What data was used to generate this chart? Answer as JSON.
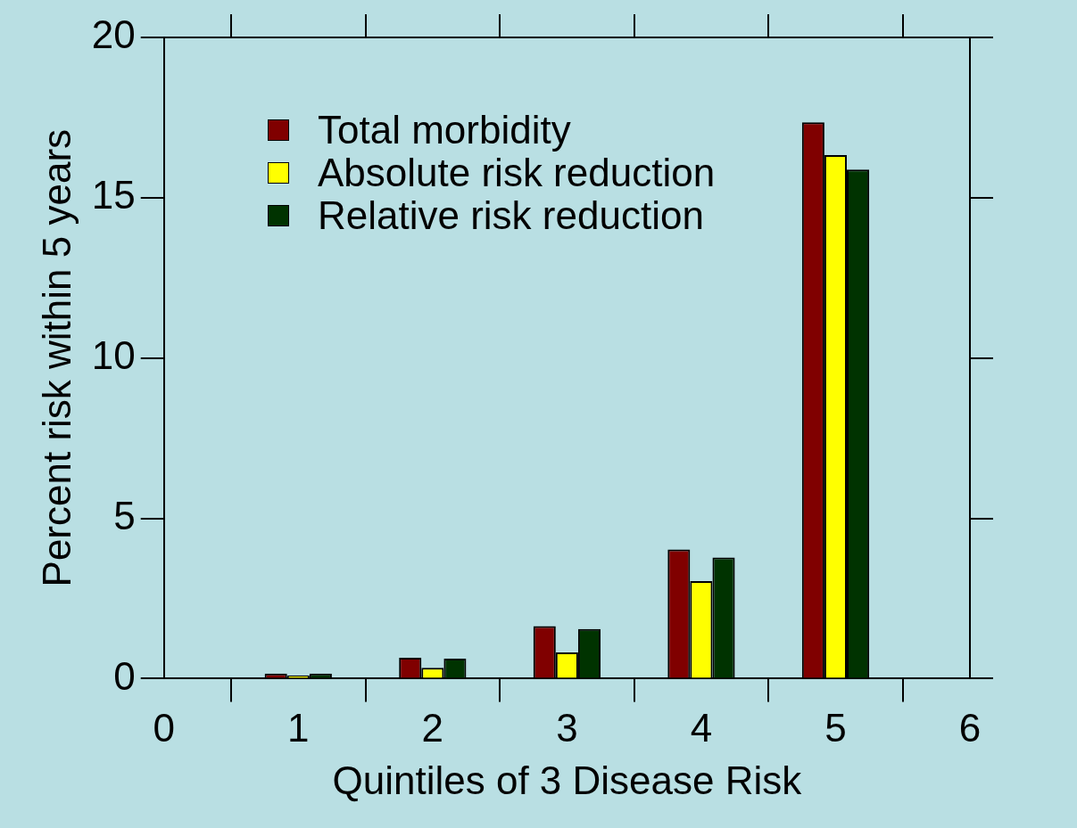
{
  "chart_data": {
    "type": "bar",
    "xlabel": "Quintiles of 3 Disease Risk",
    "ylabel": "Percent risk within 5 years",
    "x": [
      1,
      2,
      3,
      4,
      5
    ],
    "series": [
      {
        "name": "Total morbidity",
        "color": "#800000",
        "values": [
          0.16,
          0.65,
          1.64,
          4.03,
          17.35
        ]
      },
      {
        "name": "Absolute risk reduction",
        "color": "#ffff00",
        "values": [
          0.1,
          0.34,
          0.82,
          3.04,
          16.33
        ]
      },
      {
        "name": "Relative risk reduction",
        "color": "#003300",
        "values": [
          0.16,
          0.62,
          1.55,
          3.78,
          15.88
        ]
      }
    ],
    "xlim": [
      0,
      6
    ],
    "xticks": [
      0,
      1,
      2,
      3,
      4,
      5,
      6
    ],
    "ylim": [
      0,
      20
    ],
    "yticks": [
      0,
      5,
      10,
      15,
      20
    ],
    "grid": false,
    "legend": "top left"
  }
}
